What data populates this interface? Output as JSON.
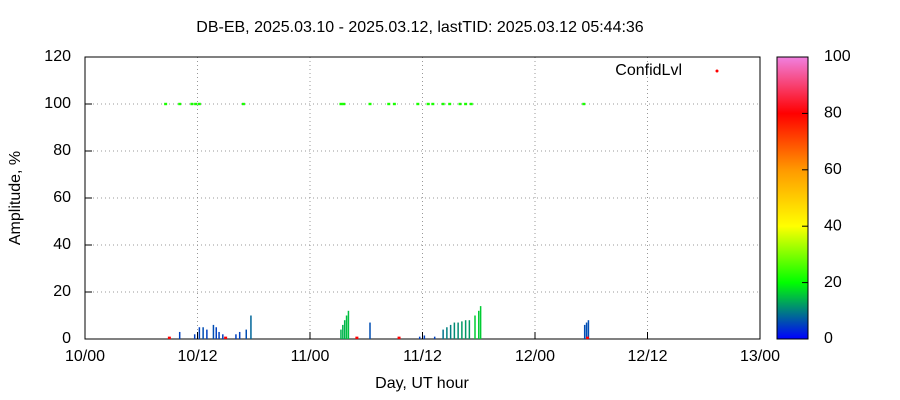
{
  "chart_data": {
    "type": "impulses",
    "title": "DB-EB, 2025.03.10 - 2025.03.12, lastTID: 2025.03.12 05:44:36",
    "xlabel": "Day, UT hour",
    "ylabel": "Amplitude, %",
    "xlim": [
      0,
      72
    ],
    "xticks": [
      {
        "value": 0,
        "label": "10/00"
      },
      {
        "value": 12,
        "label": "10/12"
      },
      {
        "value": 24,
        "label": "11/00"
      },
      {
        "value": 36,
        "label": "11/12"
      },
      {
        "value": 48,
        "label": "12/00"
      },
      {
        "value": 60,
        "label": "12/12"
      },
      {
        "value": 72,
        "label": "13/00"
      }
    ],
    "ylim": [
      0,
      120
    ],
    "yticks": [
      0,
      20,
      40,
      60,
      80,
      100,
      120
    ],
    "grid": true,
    "colorbar": {
      "lim": [
        0,
        100
      ],
      "ticks": [
        0,
        20,
        40,
        60,
        80,
        100
      ]
    },
    "legend": {
      "label": "ConfidLvl",
      "color": "#ff0000",
      "position": "top right"
    },
    "impulses": {
      "x": [
        10.1,
        11.7,
        12.2,
        12.6,
        13.0,
        13.7,
        14.0,
        14.3,
        14.7,
        16.1,
        16.5,
        17.2,
        17.7,
        27.3,
        27.5,
        27.7,
        27.9,
        28.1,
        30.4,
        35.7,
        36.2,
        37.3,
        38.2,
        38.6,
        39.0,
        39.4,
        39.8,
        40.2,
        40.6,
        41.0,
        41.6,
        42.0,
        42.2,
        53.3,
        53.5,
        53.7
      ],
      "values": [
        3,
        2,
        5,
        5,
        4,
        6,
        5,
        3,
        2,
        2,
        3,
        4,
        10,
        4,
        6,
        8,
        10,
        12,
        7,
        1,
        1.5,
        1,
        4,
        5,
        6,
        7,
        7,
        7.5,
        8,
        8,
        10,
        12,
        14,
        6,
        7,
        8
      ],
      "levels": [
        5,
        5,
        5,
        6,
        5,
        6,
        5,
        5,
        5,
        5,
        5,
        6,
        8,
        14,
        14,
        14,
        15,
        15,
        6,
        5,
        5,
        5,
        9,
        10,
        10,
        11,
        11,
        12,
        12,
        12,
        16,
        16,
        16,
        6,
        6,
        6
      ]
    },
    "points": {
      "x": [
        8.6,
        10.1,
        11.4,
        11.8,
        12.2,
        16.9,
        27.3,
        27.6,
        30.4,
        32.4,
        33.0,
        35.5,
        36.6,
        37.1,
        38.2,
        38.9,
        40.0,
        40.6,
        41.2,
        53.2,
        9.0,
        15.0,
        29.0,
        33.5,
        53.6
      ],
      "values": [
        100,
        100,
        100,
        100,
        100,
        100,
        100,
        100,
        100,
        100,
        100,
        100,
        100,
        100,
        100,
        100,
        100,
        100,
        100,
        100,
        0.5,
        0.5,
        0.5,
        0.5,
        0.5
      ],
      "levels": [
        22,
        22,
        22,
        22,
        22,
        22,
        22,
        22,
        22,
        22,
        22,
        22,
        22,
        22,
        22,
        22,
        22,
        22,
        22,
        22,
        80,
        80,
        80,
        80,
        80
      ]
    }
  }
}
